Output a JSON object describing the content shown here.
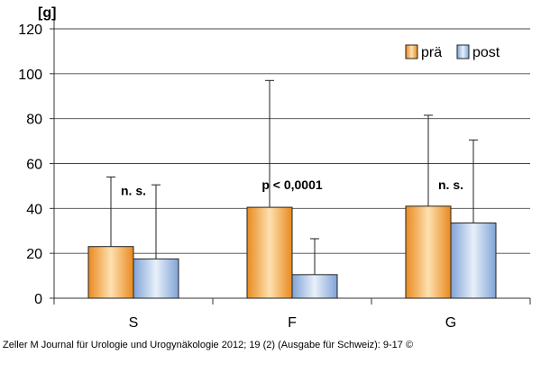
{
  "chart_data": {
    "type": "bar",
    "unit_label": "[g]",
    "categories": [
      "S",
      "F",
      "G"
    ],
    "ylim": [
      0,
      120
    ],
    "yticks": [
      0,
      20,
      40,
      60,
      80,
      100,
      120
    ],
    "grid": true,
    "legend_position": "top-right",
    "series": [
      {
        "name": "prä",
        "values": [
          23,
          40.5,
          41
        ],
        "error_upper": [
          54,
          97,
          81.5
        ],
        "color": "#f0a040"
      },
      {
        "name": "post",
        "values": [
          17.5,
          10.5,
          33.5
        ],
        "error_upper": [
          50.5,
          26.5,
          70.5
        ],
        "color": "#9ab8e0"
      }
    ],
    "annotations": [
      {
        "category": "S",
        "text": "n. s.",
        "y": 46
      },
      {
        "category": "F",
        "text": "p < 0,0001",
        "y": 48.5
      },
      {
        "category": "G",
        "text": "n. s.",
        "y": 48.5
      }
    ]
  },
  "credit": "Zeller M Journal für Urologie und Urogynäkologie 2012; 19 (2) (Ausgabe für Schweiz): 9-17 ©"
}
